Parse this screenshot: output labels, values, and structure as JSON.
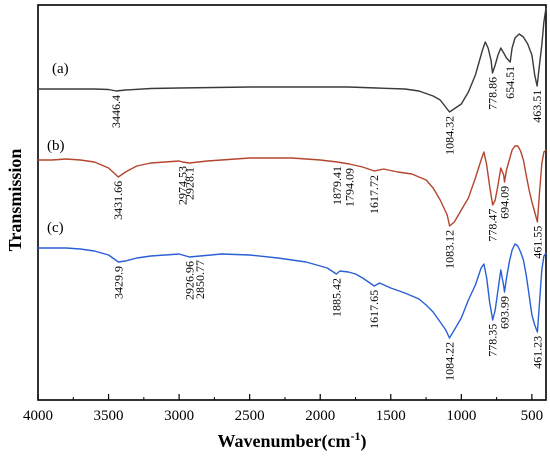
{
  "chart_data": {
    "type": "line",
    "title": "",
    "xlabel": "Wavenumber(cm",
    "xlabel_sup": "-1",
    "xlabel_close": ")",
    "ylabel": "Transmission",
    "xlim": [
      4000,
      400
    ],
    "x_reversed": true,
    "xticks": [
      4000,
      3500,
      3000,
      2500,
      2000,
      1500,
      1000,
      500
    ],
    "yticks_shown": false,
    "grid": false,
    "legend": "none",
    "series": [
      {
        "name": "(a)",
        "color": "#3a3a3a",
        "points": [
          [
            4000,
            89
          ],
          [
            3800,
            89
          ],
          [
            3600,
            89
          ],
          [
            3500,
            89.5
          ],
          [
            3446,
            91
          ],
          [
            3380,
            90
          ],
          [
            3200,
            88.5
          ],
          [
            3000,
            88
          ],
          [
            2750,
            87.5
          ],
          [
            2500,
            87
          ],
          [
            2000,
            87
          ],
          [
            1800,
            87
          ],
          [
            1600,
            88
          ],
          [
            1400,
            89
          ],
          [
            1300,
            91
          ],
          [
            1200,
            96
          ],
          [
            1150,
            100
          ],
          [
            1084,
            112
          ],
          [
            1000,
            104
          ],
          [
            950,
            92
          ],
          [
            900,
            75
          ],
          [
            850,
            50
          ],
          [
            830,
            42
          ],
          [
            810,
            48
          ],
          [
            790,
            60
          ],
          [
            779,
            73
          ],
          [
            760,
            65
          ],
          [
            740,
            55
          ],
          [
            720,
            48
          ],
          [
            700,
            53
          ],
          [
            680,
            58
          ],
          [
            654,
            62
          ],
          [
            640,
            48
          ],
          [
            620,
            38
          ],
          [
            590,
            34
          ],
          [
            560,
            37
          ],
          [
            530,
            44
          ],
          [
            500,
            55
          ],
          [
            480,
            75
          ],
          [
            463,
            86
          ],
          [
            450,
            70
          ],
          [
            430,
            45
          ],
          [
            415,
            22
          ],
          [
            400,
            8
          ]
        ],
        "peaks": [
          {
            "x": 3446.4,
            "label": "3446.4"
          },
          {
            "x": 1084.32,
            "label": "1084.32"
          },
          {
            "x": 778.86,
            "label": "778.86"
          },
          {
            "x": 654.51,
            "label": "654.51"
          },
          {
            "x": 463.51,
            "label": "463.51"
          }
        ]
      },
      {
        "name": "(b)",
        "color": "#b5452f",
        "points": [
          [
            4000,
            160
          ],
          [
            3900,
            160
          ],
          [
            3800,
            159
          ],
          [
            3700,
            160
          ],
          [
            3600,
            162
          ],
          [
            3500,
            168
          ],
          [
            3431,
            177
          ],
          [
            3380,
            172
          ],
          [
            3300,
            166
          ],
          [
            3200,
            163
          ],
          [
            3000,
            161
          ],
          [
            2975,
            162
          ],
          [
            2928,
            163
          ],
          [
            2800,
            161
          ],
          [
            2500,
            158
          ],
          [
            2200,
            158
          ],
          [
            2000,
            160
          ],
          [
            1879,
            162
          ],
          [
            1794,
            164
          ],
          [
            1700,
            167
          ],
          [
            1617,
            171
          ],
          [
            1550,
            169
          ],
          [
            1450,
            172
          ],
          [
            1350,
            174
          ],
          [
            1250,
            180
          ],
          [
            1200,
            188
          ],
          [
            1150,
            200
          ],
          [
            1100,
            215
          ],
          [
            1083,
            226
          ],
          [
            1050,
            222
          ],
          [
            1000,
            210
          ],
          [
            950,
            198
          ],
          [
            900,
            178
          ],
          [
            860,
            160
          ],
          [
            840,
            152
          ],
          [
            820,
            165
          ],
          [
            800,
            186
          ],
          [
            778,
            205
          ],
          [
            760,
            200
          ],
          [
            740,
            185
          ],
          [
            720,
            168
          ],
          [
            700,
            175
          ],
          [
            694,
            182
          ],
          [
            680,
            170
          ],
          [
            660,
            160
          ],
          [
            640,
            150
          ],
          [
            620,
            146
          ],
          [
            600,
            146
          ],
          [
            580,
            151
          ],
          [
            560,
            160
          ],
          [
            540,
            175
          ],
          [
            520,
            190
          ],
          [
            500,
            202
          ],
          [
            480,
            212
          ],
          [
            461,
            222
          ],
          [
            445,
            190
          ],
          [
            430,
            164
          ],
          [
            415,
            152
          ],
          [
            400,
            150
          ]
        ],
        "peaks": [
          {
            "x": 3431.66,
            "label": "3431.66"
          },
          {
            "x": 2974.53,
            "label": "2974.53"
          },
          {
            "x": 2928.1,
            "label": "2928.1"
          },
          {
            "x": 1879.41,
            "label": "1879.41"
          },
          {
            "x": 1794.09,
            "label": "1794.09"
          },
          {
            "x": 1617.72,
            "label": "1617.72"
          },
          {
            "x": 1083.12,
            "label": "1083.12"
          },
          {
            "x": 778.47,
            "label": "778.47"
          },
          {
            "x": 694.09,
            "label": "694.09"
          },
          {
            "x": 461.55,
            "label": "461.55"
          }
        ]
      },
      {
        "name": "(c)",
        "color": "#2a5fd6",
        "points": [
          [
            4000,
            248
          ],
          [
            3800,
            248
          ],
          [
            3700,
            249
          ],
          [
            3600,
            251
          ],
          [
            3500,
            255
          ],
          [
            3430,
            262
          ],
          [
            3380,
            261
          ],
          [
            3300,
            258
          ],
          [
            3200,
            256
          ],
          [
            3000,
            254
          ],
          [
            2927,
            257
          ],
          [
            2851,
            256
          ],
          [
            2700,
            254
          ],
          [
            2500,
            255
          ],
          [
            2300,
            258
          ],
          [
            2100,
            262
          ],
          [
            1950,
            268
          ],
          [
            1885,
            274
          ],
          [
            1860,
            271
          ],
          [
            1800,
            272
          ],
          [
            1750,
            274
          ],
          [
            1700,
            278
          ],
          [
            1617,
            286
          ],
          [
            1580,
            283
          ],
          [
            1500,
            288
          ],
          [
            1400,
            293
          ],
          [
            1300,
            299
          ],
          [
            1250,
            305
          ],
          [
            1200,
            312
          ],
          [
            1150,
            322
          ],
          [
            1110,
            330
          ],
          [
            1084,
            338
          ],
          [
            1050,
            330
          ],
          [
            1000,
            318
          ],
          [
            950,
            300
          ],
          [
            900,
            285
          ],
          [
            860,
            268
          ],
          [
            840,
            264
          ],
          [
            820,
            278
          ],
          [
            800,
            302
          ],
          [
            778,
            320
          ],
          [
            760,
            310
          ],
          [
            740,
            290
          ],
          [
            720,
            270
          ],
          [
            700,
            286
          ],
          [
            694,
            292
          ],
          [
            680,
            278
          ],
          [
            660,
            262
          ],
          [
            640,
            250
          ],
          [
            620,
            244
          ],
          [
            600,
            246
          ],
          [
            580,
            252
          ],
          [
            560,
            260
          ],
          [
            540,
            275
          ],
          [
            520,
            295
          ],
          [
            500,
            315
          ],
          [
            480,
            325
          ],
          [
            461,
            332
          ],
          [
            445,
            300
          ],
          [
            430,
            270
          ],
          [
            415,
            256
          ],
          [
            400,
            253
          ]
        ],
        "peaks": [
          {
            "x": 3429.9,
            "label": "3429.9"
          },
          {
            "x": 2926.96,
            "label": "2926.96"
          },
          {
            "x": 2850.77,
            "label": "2850.77"
          },
          {
            "x": 1885.42,
            "label": "1885.42"
          },
          {
            "x": 1617.65,
            "label": "1617.65"
          },
          {
            "x": 1084.22,
            "label": "1084.22"
          },
          {
            "x": 778.35,
            "label": "778.35"
          },
          {
            "x": 693.99,
            "label": "693.99"
          },
          {
            "x": 461.23,
            "label": "461.23"
          }
        ]
      }
    ]
  }
}
